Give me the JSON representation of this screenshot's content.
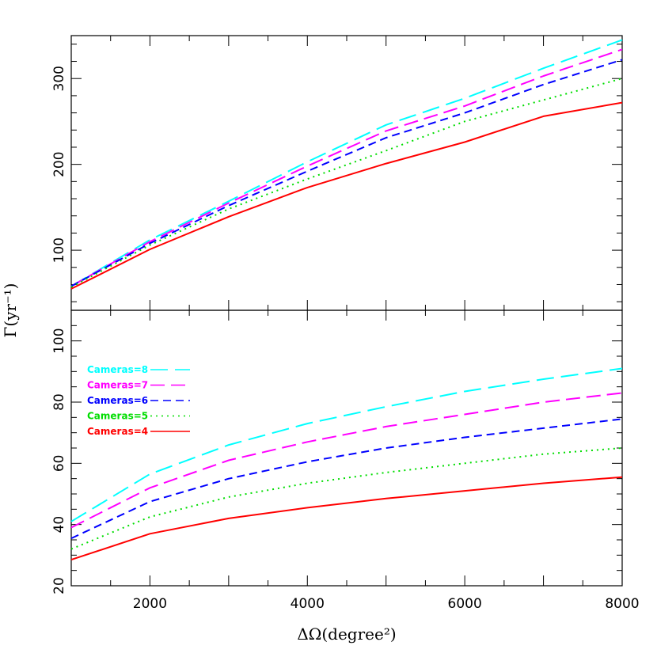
{
  "chart_data": [
    {
      "type": "line",
      "panel": "top",
      "title": "",
      "xlabel": "",
      "ylabel": "",
      "xlim": [
        1000,
        8000
      ],
      "ylim": [
        30,
        350
      ],
      "y_ticks": [
        100,
        200,
        300
      ],
      "x": [
        1000,
        2000,
        3000,
        4000,
        5000,
        6000,
        7000,
        8000
      ],
      "series": [
        {
          "name": "Cameras=8",
          "color": "#00ffff",
          "dash": "22,9",
          "values": [
            58,
            112,
            157,
            203,
            246,
            277,
            312,
            345
          ]
        },
        {
          "name": "Cameras=7",
          "color": "#ff00ff",
          "dash": "18,8",
          "values": [
            58,
            110,
            155,
            198,
            239,
            268,
            303,
            334
          ]
        },
        {
          "name": "Cameras=6",
          "color": "#0000ff",
          "dash": "10,6",
          "values": [
            58,
            108,
            152,
            192,
            231,
            260,
            293,
            322
          ]
        },
        {
          "name": "Cameras=5",
          "color": "#00dd00",
          "dash": "2,5",
          "values": [
            57,
            106,
            148,
            183,
            216,
            250,
            275,
            300
          ]
        },
        {
          "name": "Cameras=4",
          "color": "#ff0000",
          "dash": "",
          "values": [
            55,
            101,
            139,
            173,
            201,
            226,
            256,
            272
          ]
        }
      ]
    },
    {
      "type": "line",
      "panel": "bottom",
      "title": "",
      "xlabel": "ΔΩ(degree²)",
      "ylabel": "",
      "xlim": [
        1000,
        8000
      ],
      "ylim": [
        20,
        110
      ],
      "y_ticks": [
        20,
        40,
        60,
        80,
        100
      ],
      "x_ticks": [
        2000,
        4000,
        6000,
        8000
      ],
      "x": [
        1000,
        2000,
        3000,
        4000,
        5000,
        6000,
        7000,
        8000
      ],
      "legend_position": "upper-left",
      "series": [
        {
          "name": "Cameras=8",
          "color": "#00ffff",
          "dash": "22,9",
          "values": [
            41,
            56.5,
            66,
            73,
            78.5,
            83.5,
            87.5,
            91
          ]
        },
        {
          "name": "Cameras=7",
          "color": "#ff00ff",
          "dash": "18,8",
          "values": [
            39,
            52,
            61,
            67,
            72,
            76,
            80,
            83
          ]
        },
        {
          "name": "Cameras=6",
          "color": "#0000ff",
          "dash": "10,6",
          "values": [
            35.5,
            47.5,
            55,
            60.5,
            65,
            68.5,
            71.5,
            74.5
          ]
        },
        {
          "name": "Cameras=5",
          "color": "#00dd00",
          "dash": "2,5",
          "values": [
            32,
            42.5,
            49,
            53.5,
            57,
            60,
            63,
            65
          ]
        },
        {
          "name": "Cameras=4",
          "color": "#ff0000",
          "dash": "",
          "values": [
            28.5,
            37,
            42,
            45.5,
            48.5,
            51,
            53.5,
            55.5
          ]
        }
      ]
    }
  ],
  "shared_ylabel": "Γ(yr⁻¹)"
}
